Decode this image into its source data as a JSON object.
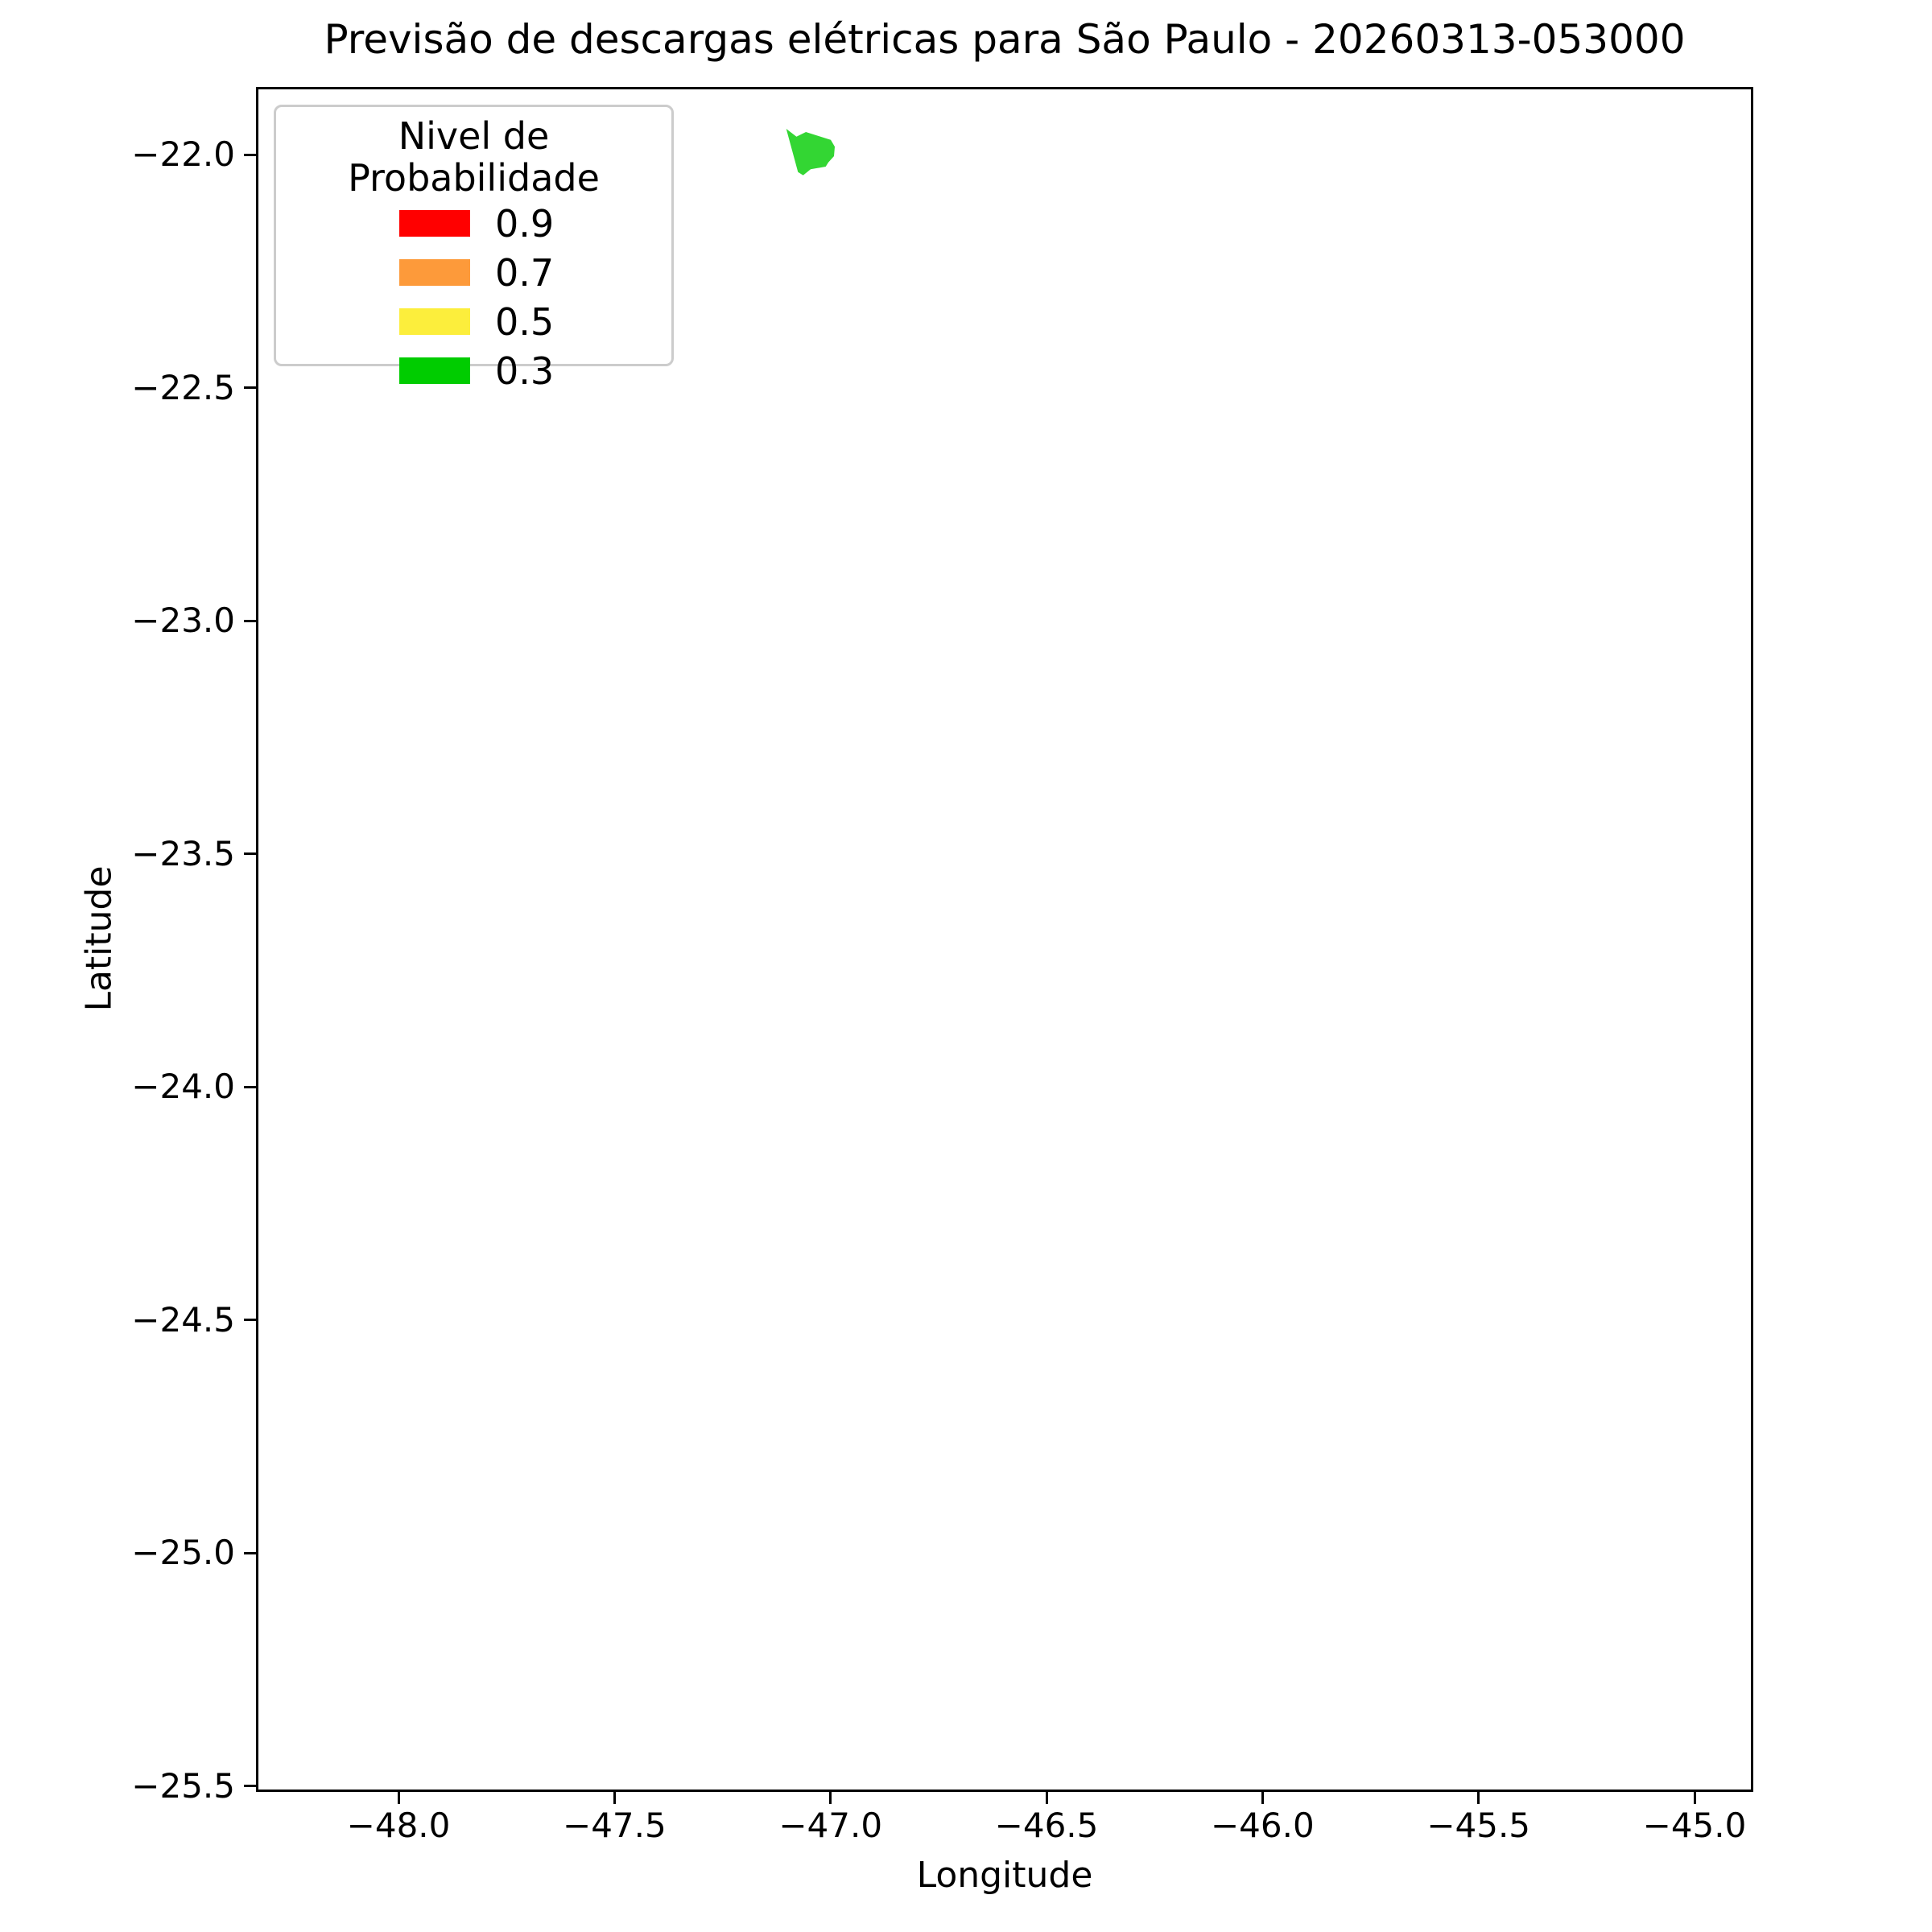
{
  "figure": {
    "background_color": "#ffffff",
    "text_color": "#000000",
    "spine_color": "#000000",
    "legend_border_color": "#cccccc"
  },
  "chart_data": {
    "type": "map",
    "title": "Previsão de descargas elétricas para São Paulo - 20260313-053000",
    "xlabel": "Longitude",
    "ylabel": "Latitude",
    "xlim": [
      -48.3299,
      -44.864
    ],
    "ylim": [
      -25.5129,
      -21.8549
    ],
    "grid": false,
    "xticks": {
      "values": [
        -48.0,
        -47.5,
        -47.0,
        -46.5,
        -46.0,
        -45.5,
        -45.0
      ],
      "labels": [
        "−48.0",
        "−47.5",
        "−47.0",
        "−46.5",
        "−46.0",
        "−45.5",
        "−45.0"
      ]
    },
    "yticks": {
      "values": [
        -22.0,
        -22.5,
        -23.0,
        -23.5,
        -24.0,
        -24.5,
        -25.0,
        -25.5
      ],
      "labels": [
        "−22.0",
        "−22.5",
        "−23.0",
        "−23.5",
        "−24.0",
        "−24.5",
        "−25.0",
        "−25.5"
      ]
    },
    "legend": {
      "title": "Nivel de Probabilidade",
      "position": "upper-left",
      "entries": [
        {
          "label": "0.9",
          "color": "#FF0000"
        },
        {
          "label": "0.7",
          "color": "#FD9A3A"
        },
        {
          "label": "0.5",
          "color": "#FCEE3C"
        },
        {
          "label": "0.3",
          "color": "#00CC00"
        }
      ]
    },
    "series": [
      {
        "name": "forecast-polygon",
        "probability_level": 0.3,
        "color": "#00CC00",
        "fill_opacity": 0.8,
        "polygon_lonlat": [
          [
            -47.1024,
            -21.9447
          ],
          [
            -47.0789,
            -21.9615
          ],
          [
            -47.0571,
            -21.9516
          ],
          [
            -47.0291,
            -21.9598
          ],
          [
            -46.9994,
            -21.9684
          ],
          [
            -46.9901,
            -21.9832
          ],
          [
            -46.992,
            -22.0035
          ],
          [
            -47.005,
            -22.0168
          ],
          [
            -47.0112,
            -22.0259
          ],
          [
            -47.046,
            -22.0316
          ],
          [
            -47.0634,
            -22.0444
          ],
          [
            -47.0753,
            -22.0375
          ]
        ]
      }
    ]
  }
}
